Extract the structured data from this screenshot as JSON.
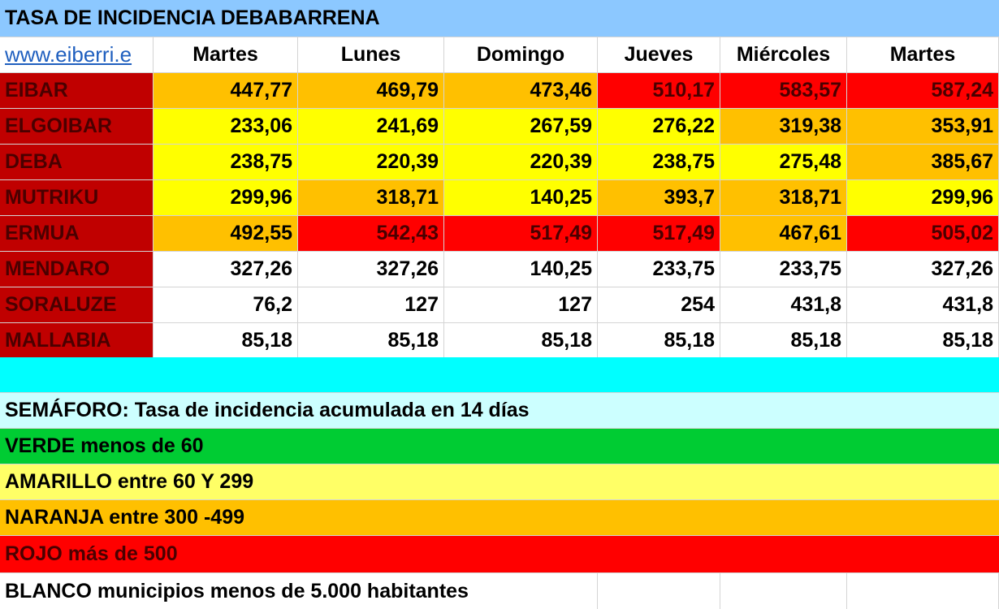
{
  "title": "TASA DE INCIDENCIA DEBABARRENA",
  "link_text": "www.eiberri.e",
  "colors": {
    "title_bg": "#8cc8ff",
    "name_bg": "#c00000",
    "name_text": "#4a0000",
    "orange": "#ffc000",
    "yellow": "#ffff00",
    "red": "#ff0000",
    "white": "#ffffff",
    "cyan": "#00ffff",
    "light_cyan": "#ccffff",
    "green": "#00cc33",
    "light_yellow": "#ffff66"
  },
  "days": [
    "Martes",
    "Lunes",
    "Domingo",
    "Jueves",
    "Miércoles",
    "Martes"
  ],
  "rows": [
    {
      "name": "EIBAR",
      "values": [
        "447,77",
        "469,79",
        "473,46",
        "510,17",
        "583,57",
        "587,24"
      ],
      "colors": [
        "orange",
        "orange",
        "orange",
        "red",
        "red",
        "red"
      ],
      "value_colors": [
        "#000",
        "#000",
        "#000",
        "#4a0000",
        "#4a0000",
        "#4a0000"
      ]
    },
    {
      "name": "ELGOIBAR",
      "values": [
        "233,06",
        "241,69",
        "267,59",
        "276,22",
        "319,38",
        "353,91"
      ],
      "colors": [
        "yellow",
        "yellow",
        "yellow",
        "yellow",
        "orange",
        "orange"
      ]
    },
    {
      "name": "DEBA",
      "values": [
        "238,75",
        "220,39",
        "220,39",
        "238,75",
        "275,48",
        "385,67"
      ],
      "colors": [
        "yellow",
        "yellow",
        "yellow",
        "yellow",
        "yellow",
        "orange"
      ]
    },
    {
      "name": "MUTRIKU",
      "values": [
        "299,96",
        "318,71",
        "140,25",
        "393,7",
        "318,71",
        "299,96"
      ],
      "colors": [
        "yellow",
        "orange",
        "yellow",
        "orange",
        "orange",
        "yellow"
      ]
    },
    {
      "name": "ERMUA",
      "values": [
        "492,55",
        "542,43",
        "517,49",
        "517,49",
        "467,61",
        "505,02"
      ],
      "colors": [
        "orange",
        "red",
        "red",
        "red",
        "orange",
        "red"
      ],
      "value_colors": [
        "#000",
        "#4a0000",
        "#4a0000",
        "#4a0000",
        "#000",
        "#4a0000"
      ]
    },
    {
      "name": "MENDARO",
      "values": [
        "327,26",
        "327,26",
        "140,25",
        "233,75",
        "233,75",
        "327,26"
      ],
      "colors": [
        "white",
        "white",
        "white",
        "white",
        "white",
        "white"
      ]
    },
    {
      "name": "SORALUZE",
      "values": [
        "76,2",
        "127",
        "127",
        "254",
        "431,8",
        "431,8"
      ],
      "colors": [
        "white",
        "white",
        "white",
        "white",
        "white",
        "white"
      ]
    },
    {
      "name": "MALLABIA",
      "values": [
        "85,18",
        "85,18",
        "85,18",
        "85,18",
        "85,18",
        "85,18"
      ],
      "colors": [
        "white",
        "white",
        "white",
        "white",
        "white",
        "white"
      ]
    }
  ],
  "legend": {
    "semaforo": "SEMÁFORO:  Tasa de incidencia acumulada en 14 días",
    "verde": "VERDE menos de 60",
    "amarillo": "AMARILLO entre 60 Y 299",
    "naranja": "NARANJA entre 300 -499",
    "rojo": "ROJO más de 500",
    "blanco": "BLANCO municipios menos de 5.000 habitantes"
  }
}
